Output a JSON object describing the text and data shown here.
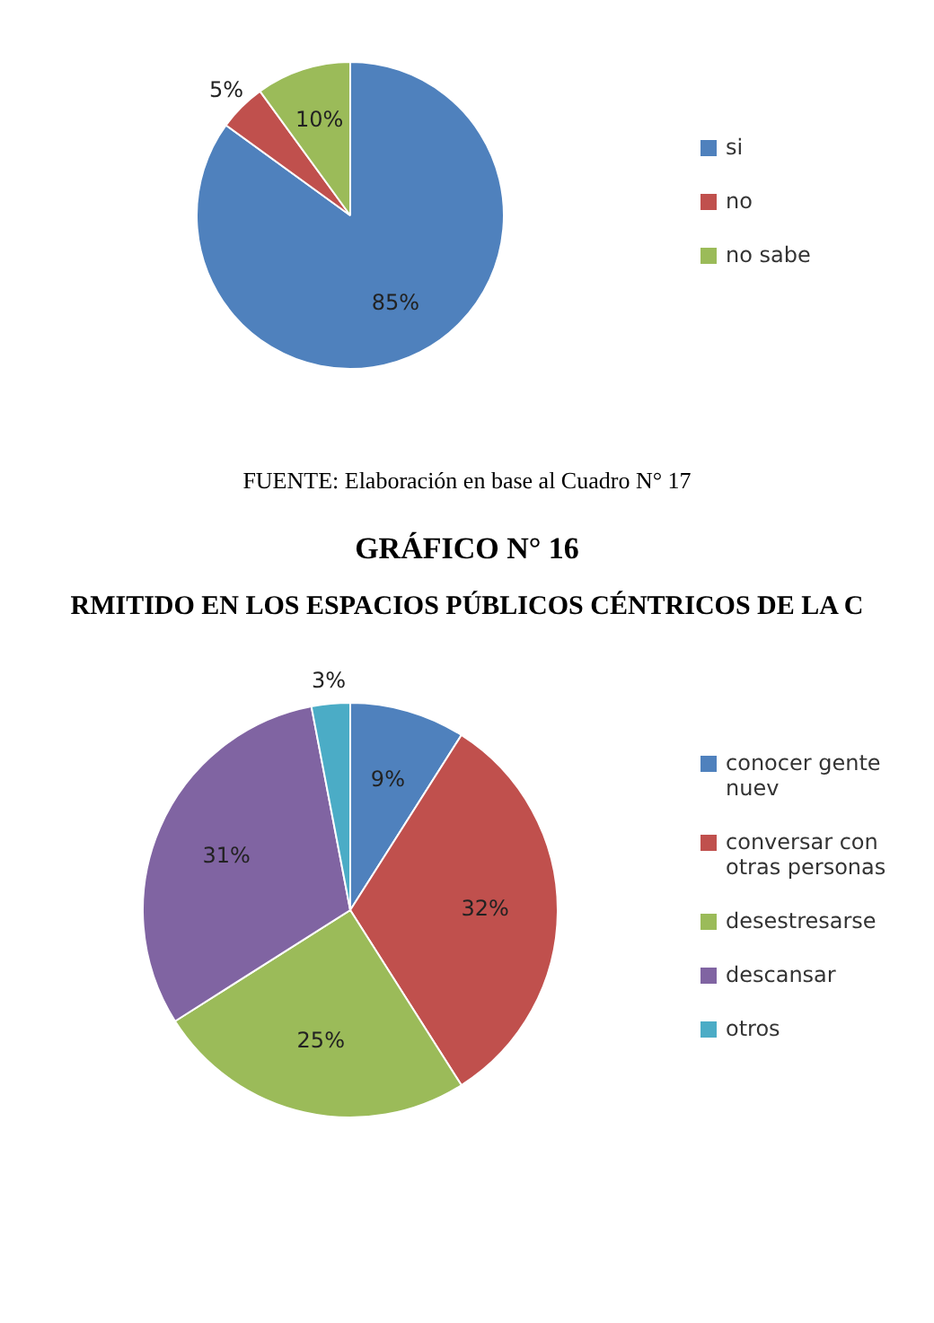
{
  "chart_data": [
    {
      "type": "pie",
      "categories": [
        "si",
        "no",
        "no sabe"
      ],
      "values": [
        85,
        5,
        10
      ],
      "colors": [
        "#4f81bd",
        "#c0504d",
        "#9bbb59"
      ],
      "value_labels": [
        "85%",
        "5%",
        "10%"
      ],
      "legend": "right",
      "annotations": [
        "FUENTE: Elaboración en base al Cuadro N° 17"
      ]
    },
    {
      "type": "pie",
      "title": "GRÁFICO N° 16",
      "subtitle": "RMITIDO EN  LOS ESPACIOS PÚBLICOS CÉNTRICOS DE LA C",
      "categories": [
        "conocer gente nuev",
        "conversar con otras personas",
        "desestresarse",
        "descansar",
        "otros"
      ],
      "values": [
        9,
        32,
        25,
        31,
        3
      ],
      "colors": [
        "#4f81bd",
        "#c0504d",
        "#9bbb59",
        "#8064a2",
        "#4bacc6"
      ],
      "value_labels": [
        "9%",
        "32%",
        "25%",
        "31%",
        "3%"
      ],
      "legend": "right"
    }
  ]
}
